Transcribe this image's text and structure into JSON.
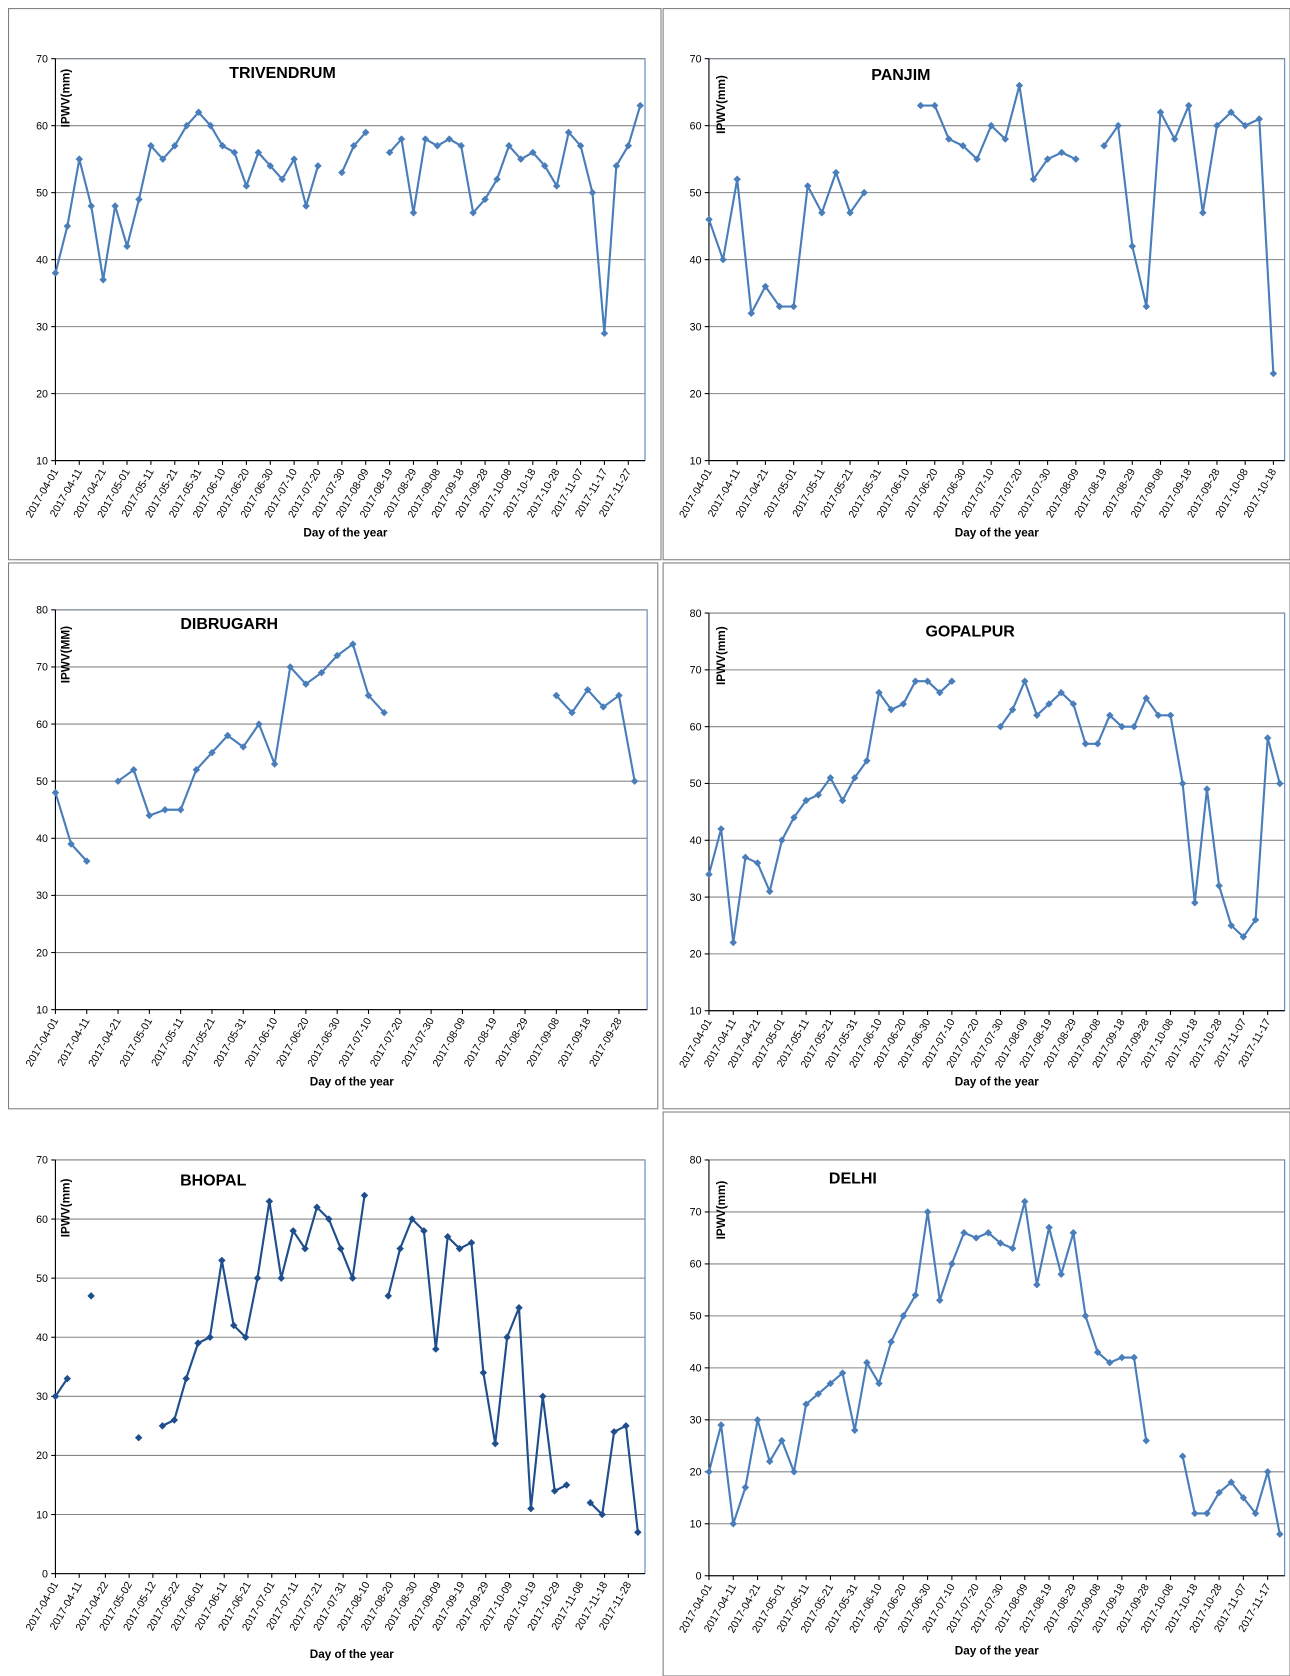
{
  "chart_data": [
    {
      "type": "line",
      "title": "TRIVENDRUM",
      "y_label": "IPWV(mm)",
      "x_label": "Day of the year",
      "color": "#4a7ebb",
      "grid": true,
      "xlim": [
        "2017-04-01",
        "2017-12-04"
      ],
      "ylim": [
        10,
        70
      ],
      "yticks": [
        10,
        20,
        30,
        40,
        50,
        60,
        70
      ],
      "xticks": [
        "2017-04-01",
        "2017-04-11",
        "2017-04-21",
        "2017-05-01",
        "2017-05-11",
        "2017-05-21",
        "2017-05-31",
        "2017-06-10",
        "2017-06-20",
        "2017-06-30",
        "2017-07-10",
        "2017-07-20",
        "2017-07-30",
        "2017-08-09",
        "2017-08-19",
        "2017-08-29",
        "2017-09-08",
        "2017-09-18",
        "2017-09-28",
        "2017-10-08",
        "2017-10-18",
        "2017-10-28",
        "2017-11-07",
        "2017-11-17",
        "2017-11-27"
      ],
      "x": [
        "2017-04-01",
        "2017-04-06",
        "2017-04-11",
        "2017-04-16",
        "2017-04-21",
        "2017-04-26",
        "2017-05-01",
        "2017-05-06",
        "2017-05-11",
        "2017-05-16",
        "2017-05-21",
        "2017-05-26",
        "2017-05-31",
        "2017-06-05",
        "2017-06-10",
        "2017-06-15",
        "2017-06-20",
        "2017-06-25",
        "2017-06-30",
        "2017-07-05",
        "2017-07-10",
        "2017-07-15",
        "2017-07-20",
        "2017-07-25",
        "2017-07-30",
        "2017-08-04",
        "2017-08-09",
        "2017-08-14",
        "2017-08-19",
        "2017-08-24",
        "2017-08-29",
        "2017-09-03",
        "2017-09-08",
        "2017-09-13",
        "2017-09-18",
        "2017-09-23",
        "2017-09-28",
        "2017-10-03",
        "2017-10-08",
        "2017-10-13",
        "2017-10-18",
        "2017-10-23",
        "2017-10-28",
        "2017-11-02",
        "2017-11-07",
        "2017-11-12",
        "2017-11-17",
        "2017-11-22",
        "2017-11-27",
        "2017-12-02"
      ],
      "values": [
        38,
        45,
        55,
        48,
        37,
        48,
        42,
        49,
        57,
        55,
        57,
        60,
        62,
        60,
        57,
        56,
        51,
        56,
        54,
        52,
        55,
        48,
        54,
        null,
        53,
        57,
        59,
        null,
        56,
        58,
        47,
        58,
        57,
        58,
        57,
        47,
        49,
        52,
        57,
        55,
        56,
        54,
        51,
        59,
        57,
        50,
        29,
        54,
        57,
        63
      ]
    },
    {
      "type": "line",
      "title": "PANJIM",
      "y_label": "IPWV(mm)",
      "x_label": "Day of the year",
      "color": "#4a7ebb",
      "grid": true,
      "xlim": [
        "2017-04-01",
        "2017-10-22"
      ],
      "ylim": [
        10,
        70
      ],
      "yticks": [
        10,
        20,
        30,
        40,
        50,
        60,
        70
      ],
      "xticks": [
        "2017-04-01",
        "2017-04-11",
        "2017-04-21",
        "2017-05-01",
        "2017-05-11",
        "2017-05-21",
        "2017-05-31",
        "2017-06-10",
        "2017-06-20",
        "2017-06-30",
        "2017-07-10",
        "2017-07-20",
        "2017-07-30",
        "2017-08-09",
        "2017-08-19",
        "2017-08-29",
        "2017-09-08",
        "2017-09-18",
        "2017-09-28",
        "2017-10-08",
        "2017-10-18"
      ],
      "x": [
        "2017-04-01",
        "2017-04-06",
        "2017-04-11",
        "2017-04-16",
        "2017-04-21",
        "2017-04-26",
        "2017-05-01",
        "2017-05-06",
        "2017-05-11",
        "2017-05-16",
        "2017-05-21",
        "2017-05-26",
        "2017-05-31",
        "2017-06-05",
        "2017-06-10",
        "2017-06-15",
        "2017-06-20",
        "2017-06-25",
        "2017-06-30",
        "2017-07-05",
        "2017-07-10",
        "2017-07-15",
        "2017-07-20",
        "2017-07-25",
        "2017-07-30",
        "2017-08-04",
        "2017-08-09",
        "2017-08-14",
        "2017-08-19",
        "2017-08-24",
        "2017-08-29",
        "2017-09-03",
        "2017-09-08",
        "2017-09-13",
        "2017-09-18",
        "2017-09-23",
        "2017-09-28",
        "2017-10-03",
        "2017-10-08",
        "2017-10-13",
        "2017-10-18"
      ],
      "values": [
        46,
        40,
        52,
        32,
        36,
        33,
        33,
        51,
        47,
        53,
        47,
        50,
        null,
        null,
        null,
        63,
        63,
        58,
        57,
        55,
        60,
        58,
        66,
        52,
        55,
        56,
        55,
        null,
        57,
        60,
        42,
        33,
        62,
        58,
        63,
        47,
        60,
        62,
        60,
        61,
        23
      ]
    },
    {
      "type": "line",
      "title": "DIBRUGARH",
      "y_label": "IPWV(MM)",
      "x_label": "Day of the year",
      "color": "#4a7ebb",
      "grid": true,
      "xlim": [
        "2017-04-01",
        "2017-10-07"
      ],
      "ylim": [
        10,
        80
      ],
      "yticks": [
        10,
        20,
        30,
        40,
        50,
        60,
        70,
        80
      ],
      "xticks": [
        "2017-04-01",
        "2017-04-11",
        "2017-04-21",
        "2017-05-01",
        "2017-05-11",
        "2017-05-21",
        "2017-05-31",
        "2017-06-10",
        "2017-06-20",
        "2017-06-30",
        "2017-07-10",
        "2017-07-20",
        "2017-07-30",
        "2017-08-09",
        "2017-08-19",
        "2017-08-29",
        "2017-09-08",
        "2017-09-18",
        "2017-09-28"
      ],
      "x": [
        "2017-04-01",
        "2017-04-06",
        "2017-04-11",
        "2017-04-16",
        "2017-04-21",
        "2017-04-26",
        "2017-05-01",
        "2017-05-06",
        "2017-05-11",
        "2017-05-16",
        "2017-05-21",
        "2017-05-26",
        "2017-05-31",
        "2017-06-05",
        "2017-06-10",
        "2017-06-15",
        "2017-06-20",
        "2017-06-25",
        "2017-06-30",
        "2017-07-05",
        "2017-07-10",
        "2017-07-15",
        "2017-07-20",
        "2017-07-25",
        "2017-07-30",
        "2017-08-04",
        "2017-08-09",
        "2017-08-14",
        "2017-08-19",
        "2017-08-24",
        "2017-08-29",
        "2017-09-03",
        "2017-09-08",
        "2017-09-13",
        "2017-09-18",
        "2017-09-23",
        "2017-09-28",
        "2017-10-03"
      ],
      "values": [
        48,
        39,
        36,
        null,
        50,
        52,
        44,
        45,
        45,
        52,
        55,
        58,
        56,
        60,
        53,
        70,
        67,
        69,
        72,
        74,
        65,
        62,
        null,
        null,
        null,
        null,
        null,
        null,
        null,
        null,
        null,
        null,
        65,
        62,
        66,
        63,
        65,
        50
      ]
    },
    {
      "type": "line",
      "title": "GOPALPUR",
      "y_label": "IPWV(mm)",
      "x_label": "Day of the year",
      "color": "#4a7ebb",
      "grid": true,
      "xlim": [
        "2017-04-01",
        "2017-11-24"
      ],
      "ylim": [
        10,
        80
      ],
      "yticks": [
        10,
        20,
        30,
        40,
        50,
        60,
        70,
        80
      ],
      "xticks": [
        "2017-04-01",
        "2017-04-11",
        "2017-04-21",
        "2017-05-01",
        "2017-05-11",
        "2017-05-21",
        "2017-05-31",
        "2017-06-10",
        "2017-06-20",
        "2017-06-30",
        "2017-07-10",
        "2017-07-20",
        "2017-07-30",
        "2017-08-09",
        "2017-08-19",
        "2017-08-29",
        "2017-09-08",
        "2017-09-18",
        "2017-09-28",
        "2017-10-08",
        "2017-10-18",
        "2017-10-28",
        "2017-11-07",
        "2017-11-17"
      ],
      "x": [
        "2017-04-01",
        "2017-04-06",
        "2017-04-11",
        "2017-04-16",
        "2017-04-21",
        "2017-04-26",
        "2017-05-01",
        "2017-05-06",
        "2017-05-11",
        "2017-05-16",
        "2017-05-21",
        "2017-05-26",
        "2017-05-31",
        "2017-06-05",
        "2017-06-10",
        "2017-06-15",
        "2017-06-20",
        "2017-06-25",
        "2017-06-30",
        "2017-07-05",
        "2017-07-10",
        "2017-07-15",
        "2017-07-20",
        "2017-07-25",
        "2017-07-30",
        "2017-08-04",
        "2017-08-09",
        "2017-08-14",
        "2017-08-19",
        "2017-08-24",
        "2017-08-29",
        "2017-09-03",
        "2017-09-08",
        "2017-09-13",
        "2017-09-18",
        "2017-09-23",
        "2017-09-28",
        "2017-10-03",
        "2017-10-08",
        "2017-10-13",
        "2017-10-18",
        "2017-10-23",
        "2017-10-28",
        "2017-11-02",
        "2017-11-07",
        "2017-11-12",
        "2017-11-17",
        "2017-11-22"
      ],
      "values": [
        34,
        42,
        22,
        37,
        36,
        31,
        40,
        44,
        47,
        48,
        51,
        47,
        51,
        54,
        66,
        63,
        64,
        68,
        68,
        66,
        68,
        null,
        null,
        null,
        60,
        63,
        68,
        62,
        64,
        66,
        64,
        57,
        57,
        62,
        60,
        60,
        65,
        62,
        62,
        50,
        29,
        49,
        32,
        25,
        23,
        26,
        58,
        50
      ]
    },
    {
      "type": "line",
      "title": "BHOPAL",
      "y_label": "IPWV(mm)",
      "x_label": "Day of the year",
      "color": "#1f4e8c",
      "grid": true,
      "xlim": [
        "2017-04-01",
        "2017-12-05"
      ],
      "ylim": [
        0,
        70
      ],
      "yticks": [
        0,
        10,
        20,
        30,
        40,
        50,
        60,
        70
      ],
      "xticks": [
        "2017-04-01",
        "2017-04-11",
        "2017-04-22",
        "2017-05-02",
        "2017-05-12",
        "2017-05-22",
        "2017-06-01",
        "2017-06-11",
        "2017-06-21",
        "2017-07-01",
        "2017-07-11",
        "2017-07-21",
        "2017-07-31",
        "2017-08-10",
        "2017-08-20",
        "2017-08-30",
        "2017-09-09",
        "2017-09-19",
        "2017-09-29",
        "2017-10-09",
        "2017-10-19",
        "2017-10-29",
        "2017-11-08",
        "2017-11-18",
        "2017-11-28"
      ],
      "x": [
        "2017-04-01",
        "2017-04-06",
        "2017-04-11",
        "2017-04-16",
        "2017-04-21",
        "2017-04-26",
        "2017-05-01",
        "2017-05-06",
        "2017-05-11",
        "2017-05-16",
        "2017-05-21",
        "2017-05-26",
        "2017-05-31",
        "2017-06-05",
        "2017-06-10",
        "2017-06-15",
        "2017-06-20",
        "2017-06-25",
        "2017-06-30",
        "2017-07-05",
        "2017-07-10",
        "2017-07-15",
        "2017-07-20",
        "2017-07-25",
        "2017-07-30",
        "2017-08-04",
        "2017-08-09",
        "2017-08-14",
        "2017-08-19",
        "2017-08-24",
        "2017-08-29",
        "2017-09-03",
        "2017-09-08",
        "2017-09-13",
        "2017-09-18",
        "2017-09-23",
        "2017-09-28",
        "2017-10-03",
        "2017-10-08",
        "2017-10-13",
        "2017-10-18",
        "2017-10-23",
        "2017-10-28",
        "2017-11-02",
        "2017-11-07",
        "2017-11-12",
        "2017-11-17",
        "2017-11-22",
        "2017-11-27",
        "2017-12-02"
      ],
      "values": [
        30,
        33,
        null,
        47,
        null,
        null,
        null,
        23,
        null,
        25,
        26,
        33,
        39,
        40,
        53,
        42,
        40,
        50,
        63,
        50,
        58,
        55,
        62,
        60,
        55,
        50,
        64,
        null,
        47,
        55,
        60,
        58,
        38,
        57,
        55,
        56,
        34,
        22,
        40,
        45,
        11,
        30,
        14,
        15,
        null,
        12,
        10,
        24,
        25,
        7
      ]
    },
    {
      "type": "line",
      "title": "DELHI",
      "y_label": "IPWV(mm)",
      "x_label": "Day of the year",
      "color": "#4a7ebb",
      "grid": true,
      "xlim": [
        "2017-04-01",
        "2017-11-24"
      ],
      "ylim": [
        0,
        80
      ],
      "yticks": [
        0,
        10,
        20,
        30,
        40,
        50,
        60,
        70,
        80
      ],
      "xticks": [
        "2017-04-01",
        "2017-04-11",
        "2017-04-21",
        "2017-05-01",
        "2017-05-11",
        "2017-05-21",
        "2017-05-31",
        "2017-06-10",
        "2017-06-20",
        "2017-06-30",
        "2017-07-10",
        "2017-07-20",
        "2017-07-30",
        "2017-08-09",
        "2017-08-19",
        "2017-08-29",
        "2017-09-08",
        "2017-09-18",
        "2017-09-28",
        "2017-10-08",
        "2017-10-18",
        "2017-10-28",
        "2017-11-07",
        "2017-11-17"
      ],
      "x": [
        "2017-04-01",
        "2017-04-06",
        "2017-04-11",
        "2017-04-16",
        "2017-04-21",
        "2017-04-26",
        "2017-05-01",
        "2017-05-06",
        "2017-05-11",
        "2017-05-16",
        "2017-05-21",
        "2017-05-26",
        "2017-05-31",
        "2017-06-05",
        "2017-06-10",
        "2017-06-15",
        "2017-06-20",
        "2017-06-25",
        "2017-06-30",
        "2017-07-05",
        "2017-07-10",
        "2017-07-15",
        "2017-07-20",
        "2017-07-25",
        "2017-07-30",
        "2017-08-04",
        "2017-08-09",
        "2017-08-14",
        "2017-08-19",
        "2017-08-24",
        "2017-08-29",
        "2017-09-03",
        "2017-09-08",
        "2017-09-13",
        "2017-09-18",
        "2017-09-23",
        "2017-09-28",
        "2017-10-03",
        "2017-10-08",
        "2017-10-13",
        "2017-10-18",
        "2017-10-23",
        "2017-10-28",
        "2017-11-02",
        "2017-11-07",
        "2017-11-12",
        "2017-11-17",
        "2017-11-22"
      ],
      "values": [
        20,
        29,
        10,
        17,
        30,
        22,
        26,
        20,
        33,
        35,
        37,
        39,
        28,
        41,
        37,
        45,
        50,
        54,
        70,
        53,
        60,
        66,
        65,
        66,
        64,
        63,
        72,
        56,
        67,
        58,
        66,
        50,
        43,
        41,
        42,
        42,
        26,
        null,
        null,
        23,
        12,
        12,
        16,
        18,
        15,
        12,
        20,
        8
      ]
    }
  ]
}
